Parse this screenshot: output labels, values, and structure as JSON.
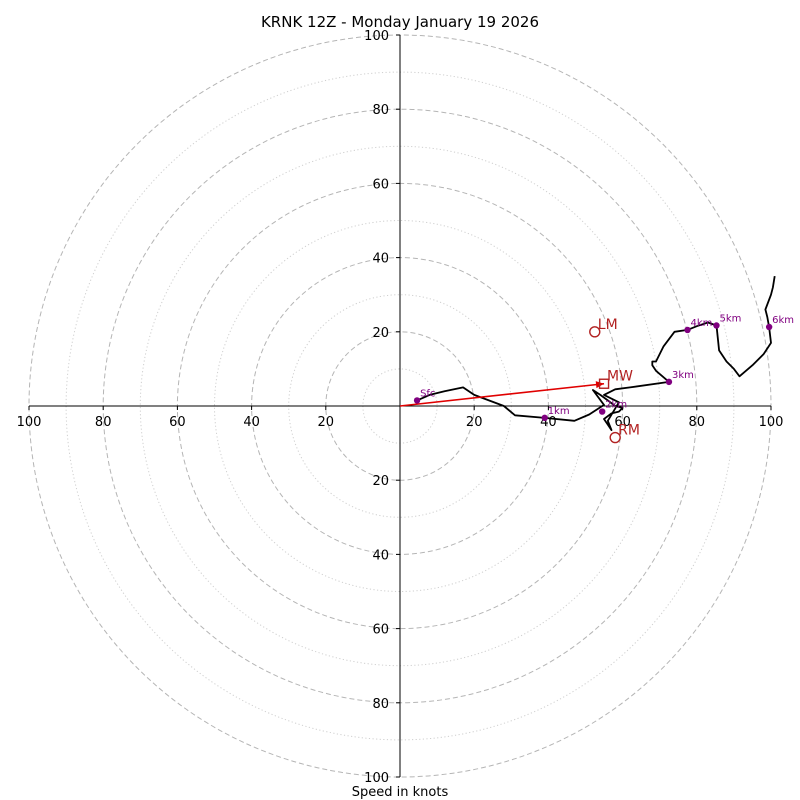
{
  "chart_data": {
    "type": "hodograph",
    "title": "KRNK 12Z - Monday January 19 2026",
    "xlabel": "Speed in knots",
    "units": "knots",
    "rings": [
      10,
      20,
      30,
      40,
      50,
      60,
      70,
      80,
      90,
      100
    ],
    "major_rings": [
      20,
      40,
      60,
      80,
      100
    ],
    "x_ticks": [
      {
        "value": -100,
        "label": "100"
      },
      {
        "value": -80,
        "label": "80"
      },
      {
        "value": -60,
        "label": "60"
      },
      {
        "value": -40,
        "label": "40"
      },
      {
        "value": -20,
        "label": "20"
      },
      {
        "value": 20,
        "label": "20"
      },
      {
        "value": 40,
        "label": "40"
      },
      {
        "value": 60,
        "label": "60"
      },
      {
        "value": 80,
        "label": "80"
      },
      {
        "value": 100,
        "label": "100"
      }
    ],
    "y_ticks": [
      {
        "value": 100,
        "label": "100"
      },
      {
        "value": 80,
        "label": "80"
      },
      {
        "value": 60,
        "label": "60"
      },
      {
        "value": 40,
        "label": "40"
      },
      {
        "value": 20,
        "label": "20"
      },
      {
        "value": -20,
        "label": "20"
      },
      {
        "value": -40,
        "label": "40"
      },
      {
        "value": -60,
        "label": "60"
      },
      {
        "value": -80,
        "label": "80"
      },
      {
        "value": -100,
        "label": "100"
      }
    ],
    "xlim": [
      -100,
      100
    ],
    "ylim": [
      -100,
      100
    ],
    "trace": [
      [
        4.6,
        1.5
      ],
      [
        8,
        3
      ],
      [
        12,
        4
      ],
      [
        17,
        5
      ],
      [
        20,
        3
      ],
      [
        28,
        0
      ],
      [
        31,
        -2.5
      ],
      [
        39,
        -3.2
      ],
      [
        47,
        -4
      ],
      [
        51,
        -2.3
      ],
      [
        55,
        0.3
      ],
      [
        52,
        4.3
      ],
      [
        54,
        3
      ],
      [
        56,
        1.5
      ],
      [
        58,
        0
      ],
      [
        60,
        -0.5
      ],
      [
        59,
        -1.5
      ],
      [
        57,
        -2
      ],
      [
        55,
        -3.5
      ],
      [
        56,
        -5
      ],
      [
        57,
        -6.5
      ],
      [
        56,
        -4
      ],
      [
        59,
        1
      ],
      [
        55,
        3
      ],
      [
        58,
        4.5
      ],
      [
        62,
        5
      ],
      [
        72.5,
        6.5
      ],
      [
        69,
        9.5
      ],
      [
        68,
        11
      ],
      [
        68,
        12
      ],
      [
        69,
        12
      ],
      [
        71,
        16
      ],
      [
        74,
        20
      ],
      [
        77.5,
        20.5
      ],
      [
        80,
        21.5
      ],
      [
        83,
        22.5
      ],
      [
        85.3,
        21.7
      ],
      [
        86,
        15
      ],
      [
        88,
        12
      ],
      [
        90,
        10
      ],
      [
        91.5,
        8
      ],
      [
        95,
        11
      ],
      [
        98,
        14
      ],
      [
        100,
        17
      ],
      [
        99.5,
        21.3
      ],
      [
        99,
        24
      ],
      [
        98.5,
        26
      ],
      [
        100,
        30
      ],
      [
        100.5,
        32
      ],
      [
        101,
        35
      ]
    ],
    "height_markers": [
      {
        "label": "Sfc",
        "u": 4.6,
        "v": 1.5
      },
      {
        "label": "1km",
        "u": 39,
        "v": -3.2
      },
      {
        "label": "2km",
        "u": 54.5,
        "v": -1.5
      },
      {
        "label": "3km",
        "u": 72.5,
        "v": 6.5
      },
      {
        "label": "4km",
        "u": 77.5,
        "v": 20.5
      },
      {
        "label": "5km",
        "u": 85.3,
        "v": 21.7
      },
      {
        "label": "6km",
        "u": 99.5,
        "v": 21.3
      }
    ],
    "storm_motions": [
      {
        "label": "LM",
        "u": 52.5,
        "v": 20,
        "marker": "circle"
      },
      {
        "label": "RM",
        "u": 58,
        "v": -8.5,
        "marker": "circle"
      },
      {
        "label": "MW",
        "u": 55,
        "v": 6,
        "marker": "square"
      }
    ],
    "mean_wind_vector": {
      "from": [
        0,
        0
      ],
      "to": [
        55,
        6
      ]
    }
  },
  "colors": {
    "trace": "#000000",
    "height_marker": "#800080",
    "storm_motion": "#b22222",
    "mean_wind_vector": "#e00000",
    "ring": "#b5b5b5",
    "axis": "#000000"
  }
}
